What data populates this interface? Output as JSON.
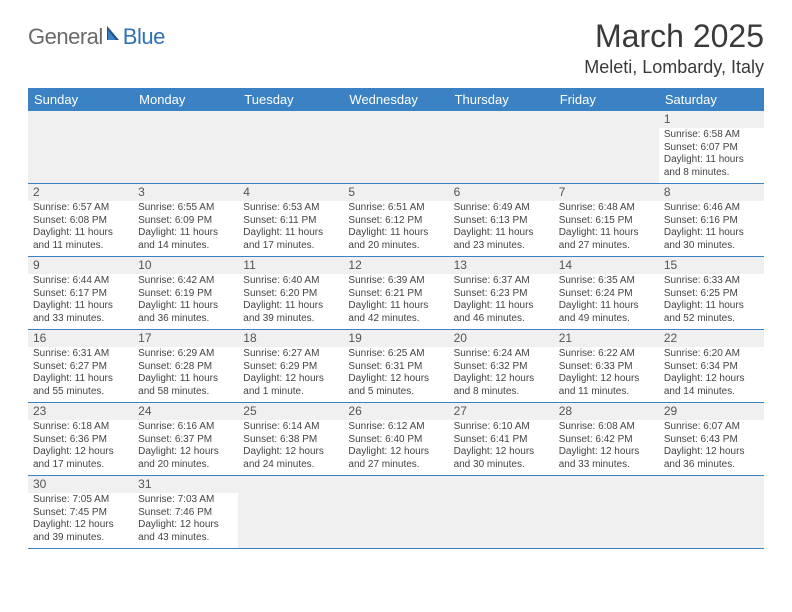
{
  "logo": {
    "word1": "General",
    "word2": "Blue"
  },
  "title": "March 2025",
  "location": "Meleti, Lombardy, Italy",
  "colors": {
    "header_bg": "#3b82c4",
    "header_text": "#ffffff",
    "daynum_bg": "#f0f0f0",
    "cell_border": "#3b82c4",
    "logo_gray": "#6a6a6a",
    "logo_blue": "#2f72b8"
  },
  "weekdays": [
    "Sunday",
    "Monday",
    "Tuesday",
    "Wednesday",
    "Thursday",
    "Friday",
    "Saturday"
  ],
  "weeks": [
    [
      null,
      null,
      null,
      null,
      null,
      null,
      {
        "n": "1",
        "sr": "Sunrise: 6:58 AM",
        "ss": "Sunset: 6:07 PM",
        "dl": "Daylight: 11 hours and 8 minutes."
      }
    ],
    [
      {
        "n": "2",
        "sr": "Sunrise: 6:57 AM",
        "ss": "Sunset: 6:08 PM",
        "dl": "Daylight: 11 hours and 11 minutes."
      },
      {
        "n": "3",
        "sr": "Sunrise: 6:55 AM",
        "ss": "Sunset: 6:09 PM",
        "dl": "Daylight: 11 hours and 14 minutes."
      },
      {
        "n": "4",
        "sr": "Sunrise: 6:53 AM",
        "ss": "Sunset: 6:11 PM",
        "dl": "Daylight: 11 hours and 17 minutes."
      },
      {
        "n": "5",
        "sr": "Sunrise: 6:51 AM",
        "ss": "Sunset: 6:12 PM",
        "dl": "Daylight: 11 hours and 20 minutes."
      },
      {
        "n": "6",
        "sr": "Sunrise: 6:49 AM",
        "ss": "Sunset: 6:13 PM",
        "dl": "Daylight: 11 hours and 23 minutes."
      },
      {
        "n": "7",
        "sr": "Sunrise: 6:48 AM",
        "ss": "Sunset: 6:15 PM",
        "dl": "Daylight: 11 hours and 27 minutes."
      },
      {
        "n": "8",
        "sr": "Sunrise: 6:46 AM",
        "ss": "Sunset: 6:16 PM",
        "dl": "Daylight: 11 hours and 30 minutes."
      }
    ],
    [
      {
        "n": "9",
        "sr": "Sunrise: 6:44 AM",
        "ss": "Sunset: 6:17 PM",
        "dl": "Daylight: 11 hours and 33 minutes."
      },
      {
        "n": "10",
        "sr": "Sunrise: 6:42 AM",
        "ss": "Sunset: 6:19 PM",
        "dl": "Daylight: 11 hours and 36 minutes."
      },
      {
        "n": "11",
        "sr": "Sunrise: 6:40 AM",
        "ss": "Sunset: 6:20 PM",
        "dl": "Daylight: 11 hours and 39 minutes."
      },
      {
        "n": "12",
        "sr": "Sunrise: 6:39 AM",
        "ss": "Sunset: 6:21 PM",
        "dl": "Daylight: 11 hours and 42 minutes."
      },
      {
        "n": "13",
        "sr": "Sunrise: 6:37 AM",
        "ss": "Sunset: 6:23 PM",
        "dl": "Daylight: 11 hours and 46 minutes."
      },
      {
        "n": "14",
        "sr": "Sunrise: 6:35 AM",
        "ss": "Sunset: 6:24 PM",
        "dl": "Daylight: 11 hours and 49 minutes."
      },
      {
        "n": "15",
        "sr": "Sunrise: 6:33 AM",
        "ss": "Sunset: 6:25 PM",
        "dl": "Daylight: 11 hours and 52 minutes."
      }
    ],
    [
      {
        "n": "16",
        "sr": "Sunrise: 6:31 AM",
        "ss": "Sunset: 6:27 PM",
        "dl": "Daylight: 11 hours and 55 minutes."
      },
      {
        "n": "17",
        "sr": "Sunrise: 6:29 AM",
        "ss": "Sunset: 6:28 PM",
        "dl": "Daylight: 11 hours and 58 minutes."
      },
      {
        "n": "18",
        "sr": "Sunrise: 6:27 AM",
        "ss": "Sunset: 6:29 PM",
        "dl": "Daylight: 12 hours and 1 minute."
      },
      {
        "n": "19",
        "sr": "Sunrise: 6:25 AM",
        "ss": "Sunset: 6:31 PM",
        "dl": "Daylight: 12 hours and 5 minutes."
      },
      {
        "n": "20",
        "sr": "Sunrise: 6:24 AM",
        "ss": "Sunset: 6:32 PM",
        "dl": "Daylight: 12 hours and 8 minutes."
      },
      {
        "n": "21",
        "sr": "Sunrise: 6:22 AM",
        "ss": "Sunset: 6:33 PM",
        "dl": "Daylight: 12 hours and 11 minutes."
      },
      {
        "n": "22",
        "sr": "Sunrise: 6:20 AM",
        "ss": "Sunset: 6:34 PM",
        "dl": "Daylight: 12 hours and 14 minutes."
      }
    ],
    [
      {
        "n": "23",
        "sr": "Sunrise: 6:18 AM",
        "ss": "Sunset: 6:36 PM",
        "dl": "Daylight: 12 hours and 17 minutes."
      },
      {
        "n": "24",
        "sr": "Sunrise: 6:16 AM",
        "ss": "Sunset: 6:37 PM",
        "dl": "Daylight: 12 hours and 20 minutes."
      },
      {
        "n": "25",
        "sr": "Sunrise: 6:14 AM",
        "ss": "Sunset: 6:38 PM",
        "dl": "Daylight: 12 hours and 24 minutes."
      },
      {
        "n": "26",
        "sr": "Sunrise: 6:12 AM",
        "ss": "Sunset: 6:40 PM",
        "dl": "Daylight: 12 hours and 27 minutes."
      },
      {
        "n": "27",
        "sr": "Sunrise: 6:10 AM",
        "ss": "Sunset: 6:41 PM",
        "dl": "Daylight: 12 hours and 30 minutes."
      },
      {
        "n": "28",
        "sr": "Sunrise: 6:08 AM",
        "ss": "Sunset: 6:42 PM",
        "dl": "Daylight: 12 hours and 33 minutes."
      },
      {
        "n": "29",
        "sr": "Sunrise: 6:07 AM",
        "ss": "Sunset: 6:43 PM",
        "dl": "Daylight: 12 hours and 36 minutes."
      }
    ],
    [
      {
        "n": "30",
        "sr": "Sunrise: 7:05 AM",
        "ss": "Sunset: 7:45 PM",
        "dl": "Daylight: 12 hours and 39 minutes."
      },
      {
        "n": "31",
        "sr": "Sunrise: 7:03 AM",
        "ss": "Sunset: 7:46 PM",
        "dl": "Daylight: 12 hours and 43 minutes."
      },
      null,
      null,
      null,
      null,
      null
    ]
  ]
}
